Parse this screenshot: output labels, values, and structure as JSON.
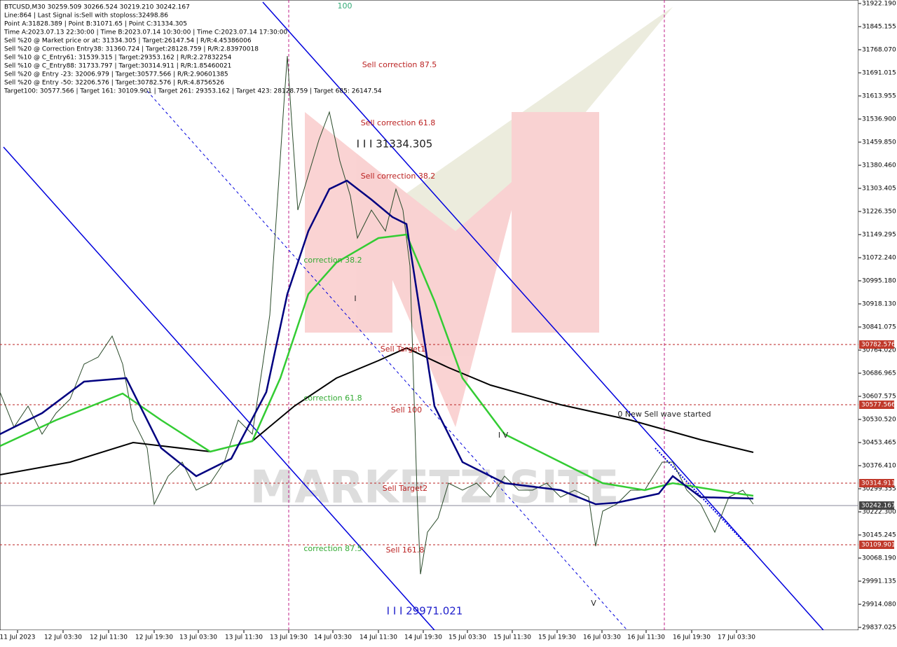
{
  "header": {
    "lines": [
      "BTCUSD,M30  30259.509 30266.524 30219.210 30242.167",
      "Line:864 | Last Signal is:Sell with stoploss:32498.86",
      "Point A:31828.389 | Point B:31071.65 | Point C:31334.305",
      "Time A:2023.07.13 22:30:00 | Time B:2023.07.14 10:30:00 | Time C:2023.07.14 17:30:00",
      "Sell %20 @ Market price or at: 31334.305 | Target:26147.54 | R/R:4.45386006",
      "Sell %20 @ Correction Entry38: 31360.724 | Target:28128.759 | R/R:2.83970018",
      "Sell %10 @ C_Entry61: 31539.315 | Target:29353.162 | R/R:2.27832254",
      "Sell %10 @ C_Entry88: 31733.797 | Target:30314.911 | R/R:1.85460021",
      "Sell %20 @ Entry -23: 32006.979 | Target:30577.566 | R/R:2.90601385",
      "Sell %20 @ Entry -50: 32206.576 | Target:30782.576 | R/R:4.8756526",
      "Target100: 30577.566 | Target 161: 30109.901 | Target 261: 29353.162 | Target 423: 28128.759 | Target 685: 26147.54"
    ]
  },
  "annotations": [
    "100",
    "Sell correction 87.5",
    "Sell correction 61.8",
    "I I I 31334.305",
    "Sell correction 38.2",
    "correction 38.2",
    "I",
    "Sell Target1",
    "correction 61.8",
    "Sell 100",
    "0 New Sell wave started",
    "I V",
    "Sell Target2",
    "correction 87.5",
    "Sell 161.8",
    "I I I 29971.021",
    "V"
  ],
  "price_axis": [
    "31922.190",
    "31845.155",
    "31768.070",
    "31691.015",
    "31613.955",
    "31536.900",
    "31459.850",
    "31380.460",
    "31303.405",
    "31226.350",
    "31149.295",
    "31072.240",
    "30995.180",
    "30918.130",
    "30841.075",
    "30764.020",
    "30686.965",
    "30607.575",
    "30530.520",
    "30453.465",
    "30376.410",
    "30299.355",
    "30222.300",
    "30145.245",
    "30068.190",
    "29991.135",
    "29914.080",
    "29837.025"
  ],
  "price_marks": [
    "30782.576",
    "30577.566",
    "30314.911",
    "30242.167",
    "30109.901"
  ],
  "time_axis": [
    "11 Jul 2023",
    "12 Jul 03:30",
    "12 Jul 11:30",
    "12 Jul 19:30",
    "13 Jul 03:30",
    "13 Jul 11:30",
    "13 Jul 19:30",
    "14 Jul 03:30",
    "14 Jul 11:30",
    "14 Jul 19:30",
    "15 Jul 03:30",
    "15 Jul 11:30",
    "15 Jul 19:30",
    "16 Jul 03:30",
    "16 Jul 11:30",
    "16 Jul 19:30",
    "17 Jul 03:30"
  ],
  "watermark": "MARKETZISITE"
}
